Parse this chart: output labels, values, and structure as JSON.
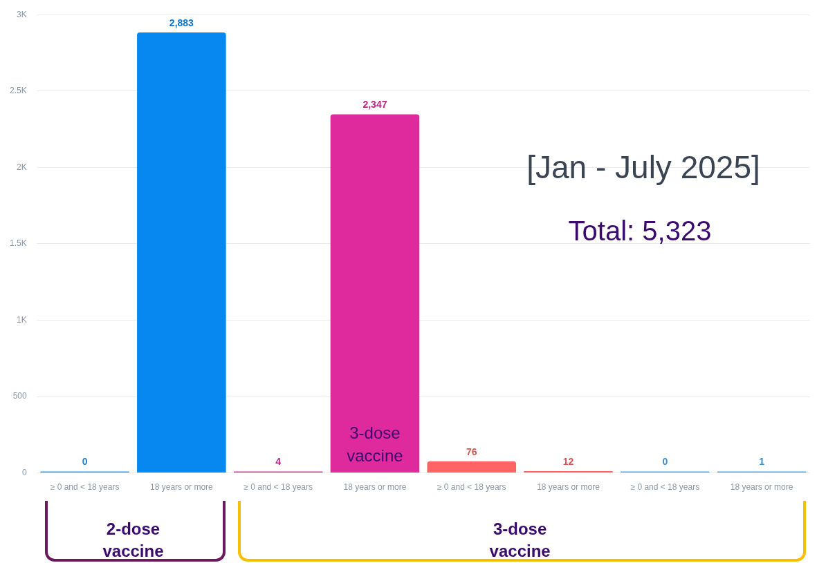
{
  "chart_data": {
    "type": "bar",
    "categories": [
      "≥ 0 and < 18 years",
      "18 years or more",
      "≥ 0 and < 18 years",
      "18 years or more",
      "≥ 0 and < 18 years",
      "18 years or more",
      "≥ 0 and < 18 years",
      "18 years or more"
    ],
    "values": [
      0,
      2883,
      4,
      2347,
      76,
      12,
      0,
      1
    ],
    "colors": [
      "#2196f3",
      "#0788f0",
      "#de2a9c",
      "#de2a9c",
      "#ff6464",
      "#ff6464",
      "#42a5f5",
      "#42a5f5"
    ],
    "value_labels": [
      "0",
      "2,883",
      "4",
      "2,347",
      "76",
      "12",
      "0",
      "1"
    ],
    "ylim": [
      0,
      3000
    ],
    "yticks": [
      0,
      500,
      {
        "value": 1000,
        "label": "1K"
      },
      {
        "value": 1500,
        "label": "1.5K"
      },
      {
        "value": 2000,
        "label": "2K"
      },
      {
        "value": 2500,
        "label": "2.5K"
      },
      {
        "value": 3000,
        "label": "3K"
      }
    ],
    "grid": "y",
    "legend": false,
    "annotations": [
      "[Jan - July 2025]",
      "Total: 5,323",
      "3-dose vaccine",
      "2-dose vaccine",
      "3-dose vaccine"
    ]
  }
}
